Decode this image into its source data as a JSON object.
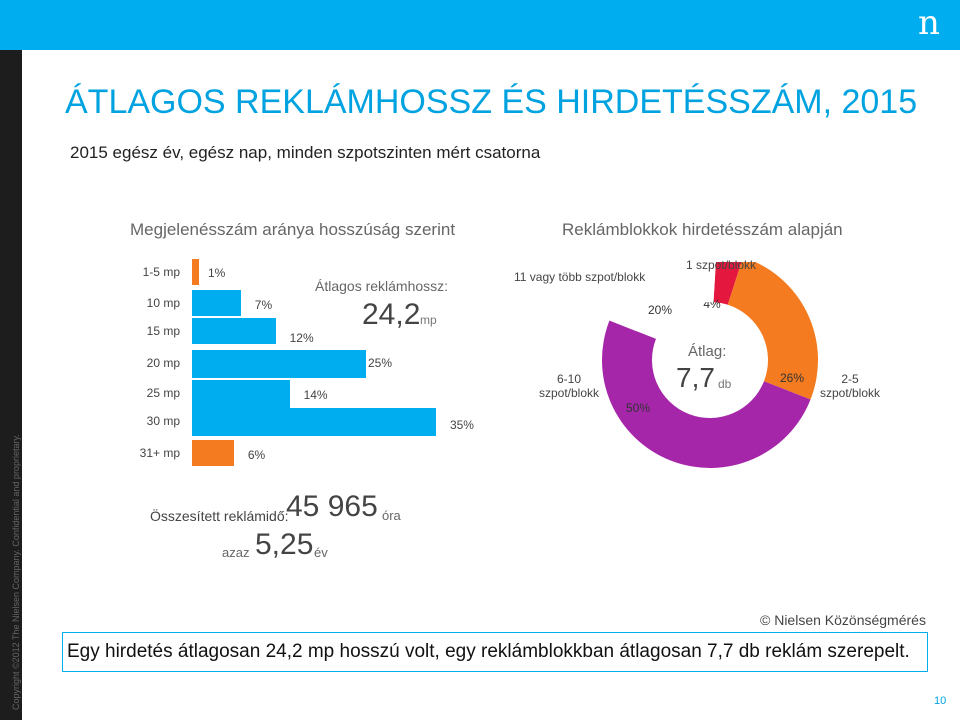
{
  "header": {
    "logo_letter": "n",
    "copyright": "Copyright ©2012 The Nielsen Company. Confidential and proprietary."
  },
  "title": "ÁTLAGOS REKLÁMHOSSZ ÉS HIRDETÉSSZÁM, 2015",
  "subtitle": "2015 egész év, egész nap, minden szpotszinten mért csatorna",
  "left_section": {
    "heading": "Megjelenésszám aránya hosszúság szerint",
    "avg_label": "Átlagos reklámhossz:",
    "avg_value": "24,2",
    "avg_unit": "mp"
  },
  "right_section": {
    "heading": "Reklámblokkok hirdetésszám alapján",
    "avg_label": "Átlag:",
    "avg_value": "7,7",
    "avg_unit": "db",
    "segment_labels": {
      "s1": "1 szpot/blokk",
      "s2_5": "2-5\nszpot/blokk",
      "s6_10": "6-10\nszpot/blokk",
      "s11": "11 vagy több szpot/blokk"
    }
  },
  "chart_data": [
    {
      "type": "bar",
      "orientation": "horizontal",
      "title": "Megjelenésszám aránya hosszúság szerint",
      "categories": [
        "1-5 mp",
        "10 mp",
        "15 mp",
        "20 mp",
        "25 mp",
        "30 mp",
        "31+ mp"
      ],
      "values": [
        1,
        7,
        12,
        25,
        14,
        35,
        6
      ],
      "value_labels": [
        "1%",
        "7%",
        "12%",
        "25%",
        "14%",
        "35%",
        "6%"
      ],
      "colors": [
        "#f47b20",
        "#00aeef",
        "#00aeef",
        "#00aeef",
        "#00aeef",
        "#00aeef",
        "#f47b20"
      ],
      "unit": "%"
    },
    {
      "type": "pie",
      "variant": "donut",
      "title": "Reklámblokkok hirdetésszám alapján",
      "categories": [
        "1 szpot/blokk",
        "2-5 szpot/blokk",
        "6-10 szpot/blokk",
        "11 vagy több szpot/blokk"
      ],
      "values": [
        4,
        26,
        50,
        20
      ],
      "value_labels": [
        "4%",
        "26%",
        "50%",
        "20%"
      ],
      "colors": [
        "#e4173e",
        "#f47b20",
        "#a626aa",
        "#ffffff"
      ]
    }
  ],
  "totals": {
    "label": "Összesített reklámidő:",
    "value": "45 965",
    "unit": "óra",
    "azaz_label": "azaz",
    "azaz_value": "5,25",
    "azaz_unit": "év"
  },
  "source": "© Nielsen Közönségmérés",
  "conclusion": "Egy hirdetés átlagosan 24,2 mp hosszú volt, egy reklámblokkban átlagosan 7,7 db reklám szerepelt.",
  "page_number": "10"
}
